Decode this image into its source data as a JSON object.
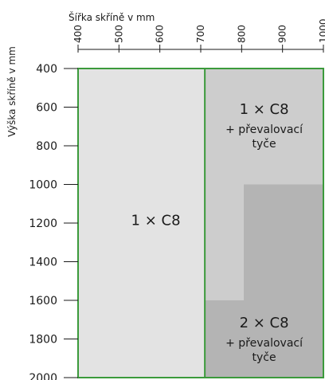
{
  "chart_data": {
    "type": "heatmap",
    "title": "",
    "xlabel": "Šířka skříně v mm",
    "ylabel": "Výška skříně v mm",
    "xlim": [
      400,
      1000
    ],
    "ylim": [
      400,
      2000
    ],
    "x_ticks": [
      400,
      500,
      600,
      700,
      800,
      900,
      1000
    ],
    "x_tick_labels": [
      "400",
      "500",
      "600",
      "700",
      "800",
      "900",
      "1000"
    ],
    "y_ticks": [
      400,
      600,
      800,
      1000,
      1200,
      1400,
      1600,
      1800,
      2000
    ],
    "y_tick_labels": [
      "400",
      "600",
      "800",
      "1000",
      "1200",
      "1400",
      "1600",
      "1800",
      "2000"
    ],
    "x_axis_position": "top",
    "regions": [
      {
        "label": "1 × C8",
        "sublabel": "",
        "fill": "#e3e3e3",
        "polygon": [
          [
            400,
            400
          ],
          [
            710,
            400
          ],
          [
            710,
            2000
          ],
          [
            400,
            2000
          ]
        ],
        "label_at": [
          590,
          1210
        ]
      },
      {
        "label": "1 × C8",
        "sublabel": "+ převalovací tyče",
        "fill": "#cdcdcd",
        "polygon": [
          [
            710,
            400
          ],
          [
            1000,
            400
          ],
          [
            1000,
            1000
          ],
          [
            805,
            1000
          ],
          [
            805,
            1600
          ],
          [
            710,
            1600
          ]
        ],
        "label_at": [
          855,
          635
        ]
      },
      {
        "label": "2 × C8",
        "sublabel": "+ převalovací tyče",
        "fill": "#b4b4b4",
        "polygon": [
          [
            805,
            1000
          ],
          [
            1000,
            1000
          ],
          [
            1000,
            2000
          ],
          [
            710,
            2000
          ],
          [
            710,
            1600
          ],
          [
            805,
            1600
          ]
        ],
        "label_at": [
          855,
          1740
        ]
      }
    ],
    "boundaries": [
      {
        "color": "#3b9a3b",
        "x": 710,
        "y_range": [
          400,
          2000
        ]
      }
    ],
    "frame_color": "#3b9a3b"
  }
}
